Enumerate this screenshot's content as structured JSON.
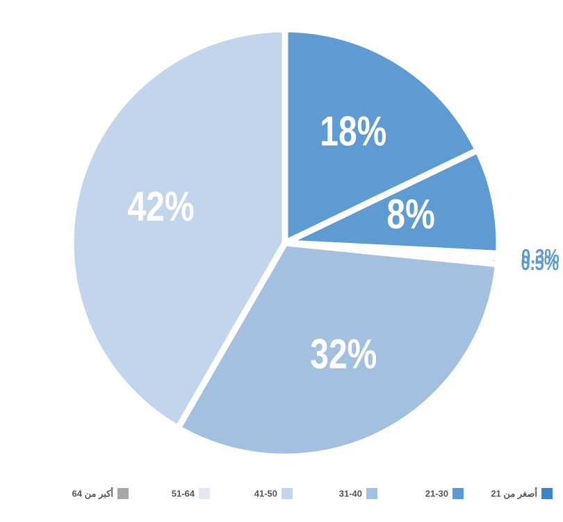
{
  "chart_data": {
    "type": "pie",
    "slices": [
      {
        "value": 18,
        "label": "18%",
        "color": "#5e9bd2"
      },
      {
        "value": 8,
        "label": "8%",
        "color": "#5e9bd2"
      },
      {
        "value": 0.3,
        "label": "0.3%",
        "color": "#5e9bd2"
      },
      {
        "value": 0.5,
        "label": "0.5%",
        "color": "#5e9bd2"
      },
      {
        "value": 32,
        "label": "32%",
        "color": "#a4c0e1"
      },
      {
        "value": 42,
        "label": "42%",
        "color": "#c3d5ec"
      }
    ],
    "outside_label_color": "#5b9bd5",
    "legend": [
      {
        "name": "أصغر من 21",
        "color": "#3a86c8"
      },
      {
        "name": "21-30",
        "color": "#5b9bd5"
      },
      {
        "name": "31-40",
        "color": "#a4c0e1"
      },
      {
        "name": "41-50",
        "color": "#c3d5ec"
      },
      {
        "name": "51-64",
        "color": "#dfe8f4"
      },
      {
        "name": "أكبر من 64",
        "color": "#a6a6a6"
      }
    ]
  }
}
